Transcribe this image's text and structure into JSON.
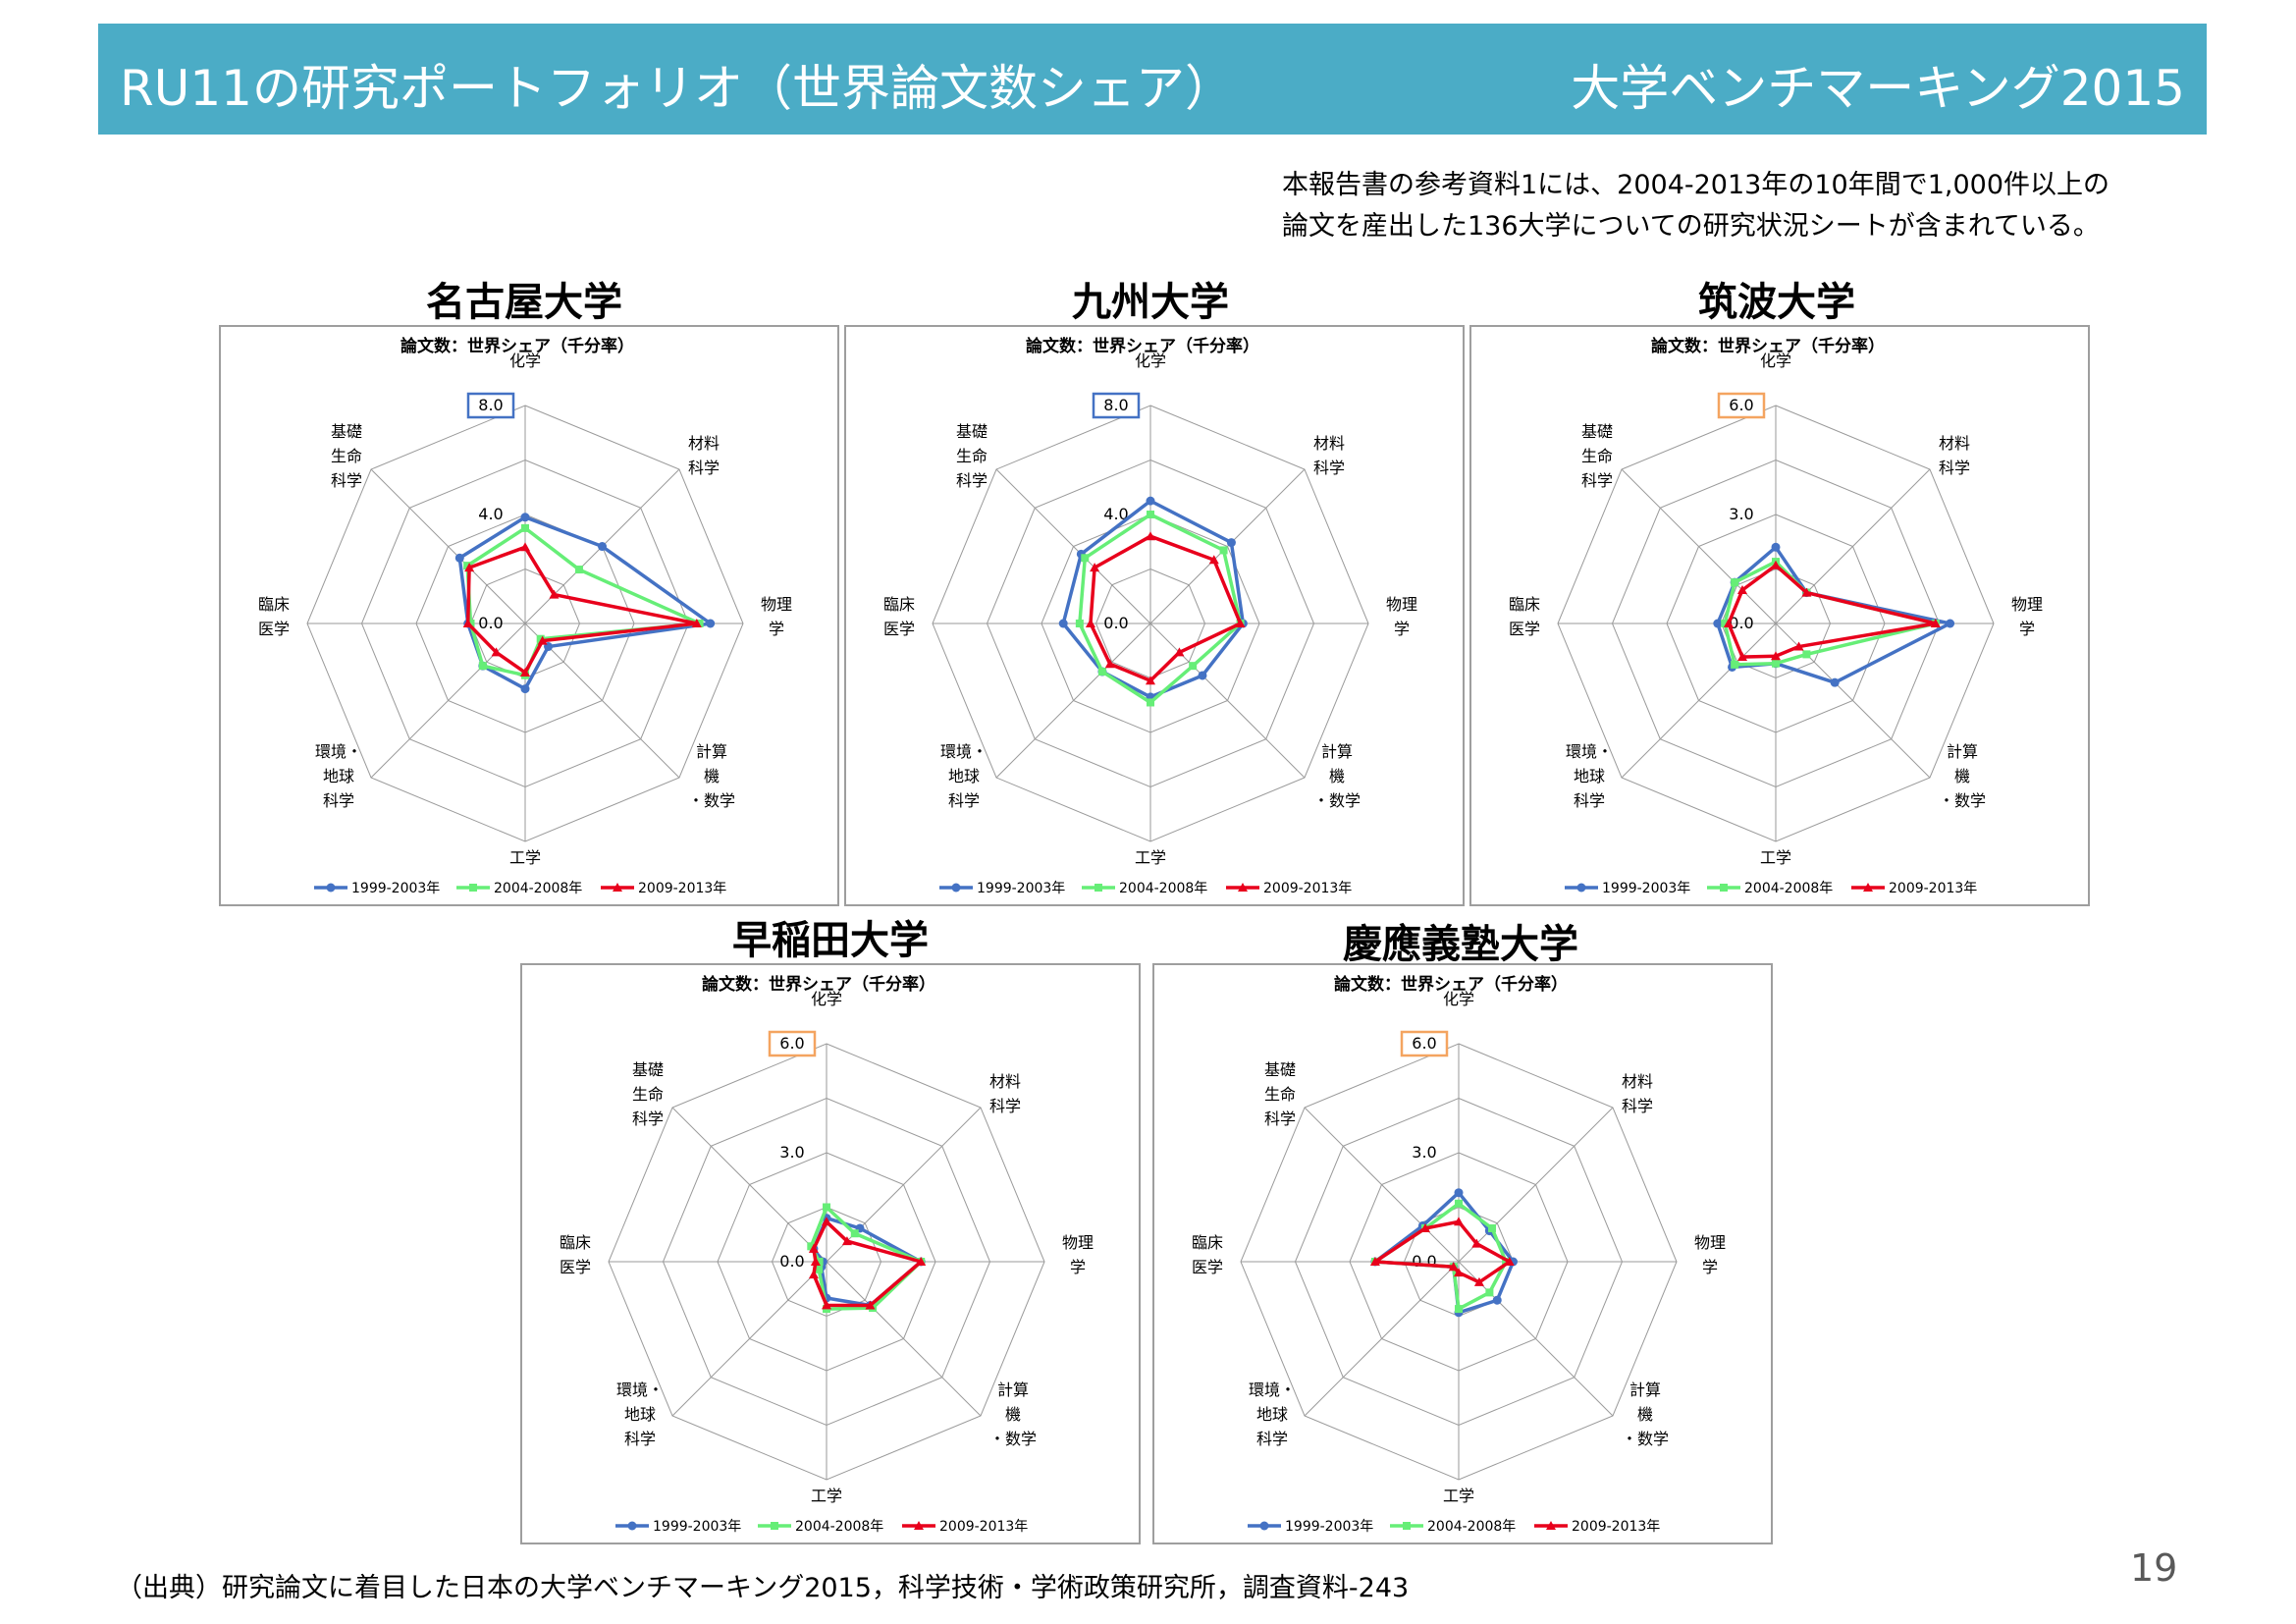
{
  "header": {
    "title": "RU11の研究ポートフォリオ（世界論文数シェア）",
    "right": "大学ベンチマーキング2015"
  },
  "note": {
    "line1": "本報告書の参考資料1には、2004-2013年の10年間で1,000件以上の",
    "line2": "論文を産出した136大学についての研究状況シートが含まれている。"
  },
  "source": "（出典）研究論文に着目した日本の大学ベンチマーキング2015，科学技術・学術政策研究所，調査資料-243",
  "page_number": "19",
  "colors": {
    "header_bg": "#4bacc6",
    "series": [
      "#4472c4",
      "#66ee77",
      "#e8001c"
    ],
    "box_blue": "#4472c4",
    "box_orange": "#f4a460"
  },
  "chart_data": [
    {
      "type": "radar",
      "university": "名古屋大学",
      "title": "論文数：世界シェア（千分率）",
      "axes": [
        "化学",
        "材料\n科学",
        "物理\n学",
        "計算\n機\n・数学",
        "工学",
        "環境・\n地球\n科学",
        "臨床\n医学",
        "基礎\n生命\n科学"
      ],
      "rmax": 8.0,
      "ticks": [
        "0.0",
        "4.0",
        "8.0"
      ],
      "highlight_max": "blue",
      "series": [
        {
          "name": "1999-2003年",
          "values": [
            3.9,
            4.0,
            6.8,
            1.2,
            2.4,
            2.2,
            2.1,
            3.4
          ]
        },
        {
          "name": "2004-2008年",
          "values": [
            3.5,
            2.8,
            6.4,
            0.8,
            1.9,
            2.2,
            2.0,
            3.0
          ]
        },
        {
          "name": "2009-2013年",
          "values": [
            2.8,
            1.5,
            6.3,
            0.9,
            1.8,
            1.5,
            2.1,
            2.9
          ]
        }
      ]
    },
    {
      "type": "radar",
      "university": "九州大学",
      "title": "論文数：世界シェア（千分率）",
      "axes": [
        "化学",
        "材料\n科学",
        "物理\n学",
        "計算\n機\n・数学",
        "工学",
        "環境・\n地球\n科学",
        "臨床\n医学",
        "基礎\n生命\n科学"
      ],
      "rmax": 8.0,
      "ticks": [
        "0.0",
        "4.0",
        "8.0"
      ],
      "highlight_max": "blue",
      "series": [
        {
          "name": "1999-2003年",
          "values": [
            4.5,
            4.2,
            3.4,
            2.7,
            2.7,
            2.5,
            3.2,
            3.6
          ]
        },
        {
          "name": "2004-2008年",
          "values": [
            4.0,
            3.8,
            3.3,
            2.2,
            2.9,
            2.5,
            2.6,
            3.4
          ]
        },
        {
          "name": "2009-2013年",
          "values": [
            3.2,
            3.3,
            3.3,
            1.5,
            2.1,
            2.1,
            2.2,
            2.9
          ]
        }
      ]
    },
    {
      "type": "radar",
      "university": "筑波大学",
      "title": "論文数：世界シェア（千分率）",
      "axes": [
        "化学",
        "材料\n科学",
        "物理\n学",
        "計算\n機\n・数学",
        "工学",
        "環境・\n地球\n科学",
        "臨床\n医学",
        "基礎\n生命\n科学"
      ],
      "rmax": 6.0,
      "ticks": [
        "0.0",
        "3.0",
        "6.0"
      ],
      "highlight_max": "orange",
      "series": [
        {
          "name": "1999-2003年",
          "values": [
            2.1,
            1.2,
            4.8,
            2.3,
            1.1,
            1.7,
            1.6,
            1.6
          ]
        },
        {
          "name": "2004-2008年",
          "values": [
            1.7,
            1.2,
            4.4,
            1.2,
            1.1,
            1.6,
            1.4,
            1.6
          ]
        },
        {
          "name": "2009-2013年",
          "values": [
            1.6,
            1.2,
            4.4,
            0.9,
            0.9,
            1.3,
            1.3,
            1.3
          ]
        }
      ]
    },
    {
      "type": "radar",
      "university": "早稲田大学",
      "title": "論文数：世界シェア（千分率）",
      "axes": [
        "化学",
        "材料\n科学",
        "物理\n学",
        "計算\n機\n・数学",
        "工学",
        "環境・\n地球\n科学",
        "臨床\n医学",
        "基礎\n生命\n科学"
      ],
      "rmax": 6.0,
      "ticks": [
        "0.0",
        "3.0",
        "6.0"
      ],
      "highlight_max": "orange",
      "series": [
        {
          "name": "1999-2003年",
          "values": [
            1.2,
            1.3,
            2.6,
            1.7,
            1.0,
            0.2,
            0.1,
            0.5
          ]
        },
        {
          "name": "2004-2008年",
          "values": [
            1.5,
            1.1,
            2.6,
            1.8,
            1.3,
            0.3,
            0.2,
            0.6
          ]
        },
        {
          "name": "2009-2013年",
          "values": [
            1.1,
            0.8,
            2.6,
            1.7,
            1.2,
            0.5,
            0.3,
            0.5
          ]
        }
      ]
    },
    {
      "type": "radar",
      "university": "慶應義塾大学",
      "title": "論文数：世界シェア（千分率）",
      "axes": [
        "化学",
        "材料\n科学",
        "物理\n学",
        "計算\n機\n・数学",
        "工学",
        "環境・\n地球\n科学",
        "臨床\n医学",
        "基礎\n生命\n科学"
      ],
      "rmax": 6.0,
      "ticks": [
        "0.0",
        "3.0",
        "6.0"
      ],
      "highlight_max": "orange",
      "series": [
        {
          "name": "1999-2003年",
          "values": [
            1.9,
            1.2,
            1.5,
            1.5,
            1.4,
            0.2,
            2.3,
            1.4
          ]
        },
        {
          "name": "2004-2008年",
          "values": [
            1.6,
            1.3,
            1.3,
            1.2,
            1.3,
            0.2,
            2.3,
            1.3
          ]
        },
        {
          "name": "2009-2013年",
          "values": [
            1.1,
            0.7,
            1.4,
            0.8,
            0.3,
            0.2,
            2.3,
            1.3
          ]
        }
      ]
    }
  ]
}
